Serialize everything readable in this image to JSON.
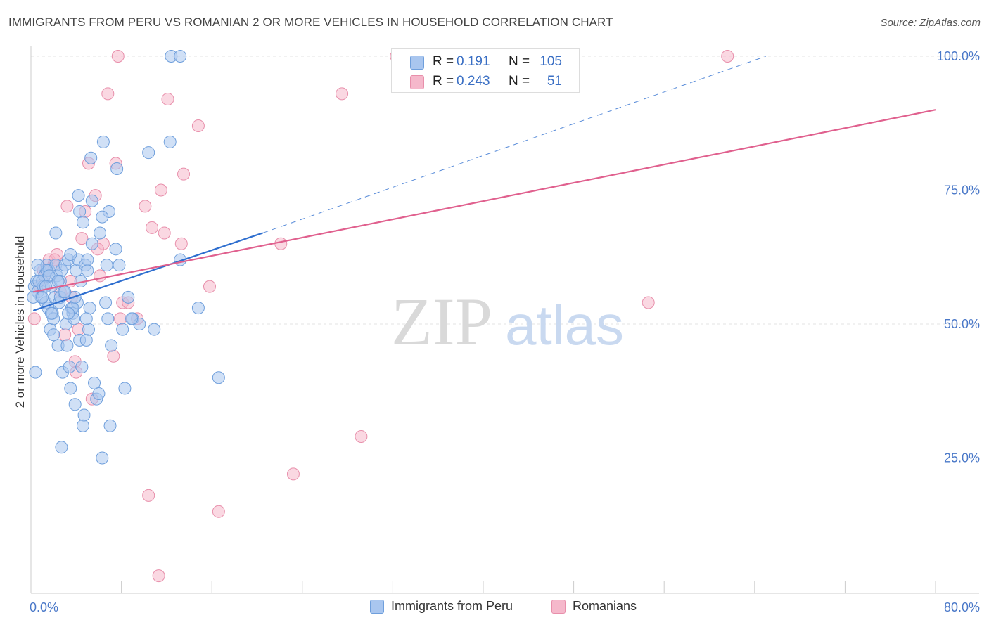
{
  "header": {
    "title": "IMMIGRANTS FROM PERU VS ROMANIAN 2 OR MORE VEHICLES IN HOUSEHOLD CORRELATION CHART",
    "source": "Source: ZipAtlas.com"
  },
  "watermark": {
    "zip": "ZIP",
    "atlas": "atlas"
  },
  "stats": [
    {
      "r_label": "R =",
      "r_value": "0.191",
      "n_label": "N =",
      "n_value": "105",
      "color": "#a9c6ef"
    },
    {
      "r_label": "R =",
      "r_value": "0.243",
      "n_label": "N =",
      "n_value": "51",
      "color": "#f5b8cb"
    }
  ],
  "legend": [
    {
      "label": "Immigrants from Peru",
      "color": "#a9c6ef"
    },
    {
      "label": "Romanians",
      "color": "#f5b8cb"
    }
  ],
  "colors": {
    "peru_fill": "#a9c6ef",
    "peru_stroke": "#6f9fdc",
    "peru_line": "#2f6fcf",
    "rom_fill": "#f5b8cb",
    "rom_stroke": "#e88fab",
    "rom_line": "#e0608e",
    "axis_label": "#4a78c8",
    "grid": "#e3e3e3"
  },
  "chart_data": {
    "type": "scatter",
    "title": "IMMIGRANTS FROM PERU VS ROMANIAN 2 OR MORE VEHICLES IN HOUSEHOLD CORRELATION CHART",
    "xlabel": "",
    "ylabel": "2 or more Vehicles in Household",
    "xlim": [
      0,
      80
    ],
    "ylim": [
      0,
      105
    ],
    "x_tick_labels": [
      "0.0%",
      "80.0%"
    ],
    "y_ticks": [
      25,
      50,
      75,
      100
    ],
    "y_tick_labels": [
      "25.0%",
      "50.0%",
      "75.0%",
      "100.0%"
    ],
    "grid": true,
    "series": [
      {
        "name": "Immigrants from Peru",
        "R": 0.191,
        "N": 105,
        "trend": {
          "x0": 0.2,
          "y0": 52.5,
          "x1": 20.5,
          "y1": 67,
          "dashed_to_x": 65,
          "dashed_to_y": 100
        },
        "points": [
          [
            0.3,
            57
          ],
          [
            0.5,
            58
          ],
          [
            0.6,
            56
          ],
          [
            0.8,
            60
          ],
          [
            0.9,
            55
          ],
          [
            1.0,
            58
          ],
          [
            1.1,
            57
          ],
          [
            1.2,
            59
          ],
          [
            1.3,
            54
          ],
          [
            1.4,
            61
          ],
          [
            1.5,
            53
          ],
          [
            1.6,
            60
          ],
          [
            1.7,
            49
          ],
          [
            1.8,
            57
          ],
          [
            1.9,
            52
          ],
          [
            2.0,
            51
          ],
          [
            2.1,
            55
          ],
          [
            2.2,
            61
          ],
          [
            2.3,
            59
          ],
          [
            2.4,
            46
          ],
          [
            2.5,
            54
          ],
          [
            2.6,
            55
          ],
          [
            2.7,
            60
          ],
          [
            2.8,
            41
          ],
          [
            2.9,
            56
          ],
          [
            3.0,
            61
          ],
          [
            3.1,
            50
          ],
          [
            3.2,
            46
          ],
          [
            3.3,
            62
          ],
          [
            3.4,
            42
          ],
          [
            3.5,
            38
          ],
          [
            3.6,
            53
          ],
          [
            3.7,
            52
          ],
          [
            3.8,
            51
          ],
          [
            3.9,
            35
          ],
          [
            4.0,
            60
          ],
          [
            4.1,
            54
          ],
          [
            4.2,
            62
          ],
          [
            4.3,
            47
          ],
          [
            4.4,
            58
          ],
          [
            4.5,
            42
          ],
          [
            4.6,
            31
          ],
          [
            4.7,
            33
          ],
          [
            4.8,
            61
          ],
          [
            4.9,
            47
          ],
          [
            5.0,
            60
          ],
          [
            5.1,
            49
          ],
          [
            5.2,
            53
          ],
          [
            5.6,
            39
          ],
          [
            5.8,
            36
          ],
          [
            6.0,
            37
          ],
          [
            6.3,
            25
          ],
          [
            6.6,
            54
          ],
          [
            6.8,
            51
          ],
          [
            7.0,
            31
          ],
          [
            7.1,
            46
          ],
          [
            7.5,
            64
          ],
          [
            7.8,
            61
          ],
          [
            8.1,
            49
          ],
          [
            8.3,
            38
          ],
          [
            8.6,
            55
          ],
          [
            9.0,
            51
          ],
          [
            9.6,
            50
          ],
          [
            10.4,
            82
          ],
          [
            10.9,
            49
          ],
          [
            12.3,
            84
          ],
          [
            13.2,
            62
          ],
          [
            14.8,
            53
          ],
          [
            16.6,
            40
          ],
          [
            12.4,
            100
          ],
          [
            13.2,
            100
          ],
          [
            6.4,
            84
          ],
          [
            6.9,
            71
          ],
          [
            7.6,
            79
          ],
          [
            5.3,
            81
          ],
          [
            4.2,
            74
          ],
          [
            4.3,
            71
          ],
          [
            4.6,
            69
          ],
          [
            5.4,
            73
          ],
          [
            6.1,
            67
          ],
          [
            6.3,
            70
          ],
          [
            5.4,
            65
          ],
          [
            1.4,
            60
          ],
          [
            1.6,
            59
          ],
          [
            2.6,
            58
          ],
          [
            3.0,
            56
          ],
          [
            0.4,
            41
          ],
          [
            2.2,
            67
          ],
          [
            3.7,
            53
          ],
          [
            4.9,
            51
          ],
          [
            0.2,
            55
          ],
          [
            0.7,
            58
          ],
          [
            1.3,
            57
          ],
          [
            2.0,
            48
          ],
          [
            2.7,
            27
          ],
          [
            3.3,
            52
          ],
          [
            3.9,
            55
          ],
          [
            6.7,
            61
          ],
          [
            8.9,
            51
          ],
          [
            0.6,
            61
          ],
          [
            1.0,
            55
          ],
          [
            1.8,
            52
          ],
          [
            2.4,
            58
          ],
          [
            3.5,
            63
          ],
          [
            5.0,
            62
          ]
        ]
      },
      {
        "name": "Romanians",
        "R": 0.243,
        "N": 51,
        "trend": {
          "x0": 0.2,
          "y0": 56,
          "x1": 80,
          "y1": 90
        },
        "points": [
          [
            0.3,
            51
          ],
          [
            0.8,
            57
          ],
          [
            1.2,
            59
          ],
          [
            1.6,
            62
          ],
          [
            2.0,
            61
          ],
          [
            2.3,
            63
          ],
          [
            2.6,
            56
          ],
          [
            3.0,
            48
          ],
          [
            3.2,
            72
          ],
          [
            3.6,
            55
          ],
          [
            3.9,
            43
          ],
          [
            4.2,
            49
          ],
          [
            4.5,
            66
          ],
          [
            4.8,
            71
          ],
          [
            5.1,
            80
          ],
          [
            5.4,
            36
          ],
          [
            5.7,
            74
          ],
          [
            6.1,
            59
          ],
          [
            6.4,
            65
          ],
          [
            6.8,
            93
          ],
          [
            7.3,
            44
          ],
          [
            7.5,
            80
          ],
          [
            7.7,
            100
          ],
          [
            7.9,
            51
          ],
          [
            8.1,
            54
          ],
          [
            8.6,
            54
          ],
          [
            9.4,
            51
          ],
          [
            10.1,
            72
          ],
          [
            10.4,
            18
          ],
          [
            10.7,
            68
          ],
          [
            11.3,
            3
          ],
          [
            11.5,
            75
          ],
          [
            11.8,
            67
          ],
          [
            12.1,
            92
          ],
          [
            13.3,
            65
          ],
          [
            13.5,
            78
          ],
          [
            14.8,
            87
          ],
          [
            15.8,
            57
          ],
          [
            16.6,
            15
          ],
          [
            22.1,
            65
          ],
          [
            23.2,
            22
          ],
          [
            27.5,
            93
          ],
          [
            29.2,
            29
          ],
          [
            32.3,
            100
          ],
          [
            54.6,
            54
          ],
          [
            61.6,
            100
          ],
          [
            5.9,
            64
          ],
          [
            3.5,
            58
          ],
          [
            2.1,
            62
          ],
          [
            4.0,
            41
          ],
          [
            1.1,
            60
          ]
        ]
      }
    ]
  }
}
